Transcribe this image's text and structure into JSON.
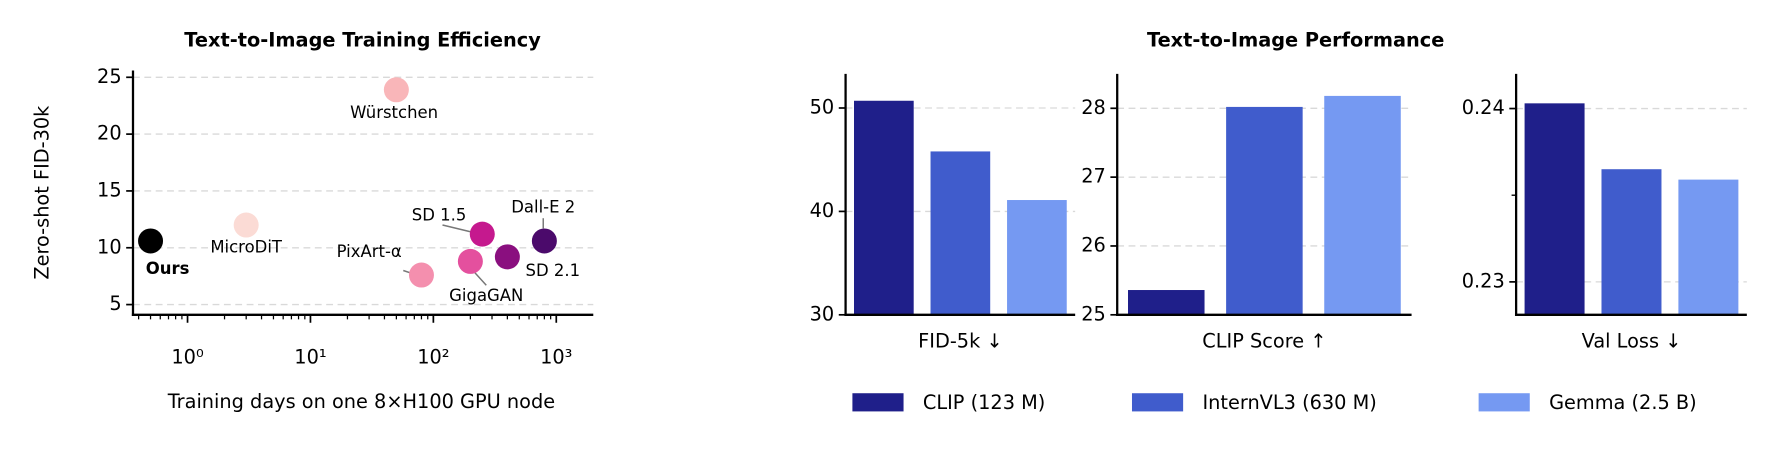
{
  "chart_data": [
    {
      "type": "scatter",
      "title": "Text-to-Image Training Efficiency",
      "x_label": "Training days on one 8×H100 GPU node",
      "y_label": "Zero-shot FID-30k",
      "labels": [
        "Ours",
        "MicroDiT",
        "Würstchen",
        "PixArt-α",
        "GigaGAN",
        "SD 1.5",
        "SD 2.1",
        "Dall-E 2"
      ],
      "x": [
        0.5,
        3,
        50,
        80,
        200,
        250,
        400,
        800
      ],
      "values": [
        10.6,
        12.0,
        23.9,
        7.6,
        8.8,
        11.2,
        9.2,
        10.6
      ],
      "colors": [
        "#000000",
        "#fbdbd5",
        "#f9b6b9",
        "#f48fae",
        "#e4509e",
        "#c5198e",
        "#8a0f7f",
        "#4b0a6b"
      ],
      "xscale": "log",
      "xlim": [
        0.36,
        2000
      ],
      "ylim": [
        4.1,
        25.6
      ],
      "xticks": [
        {
          "value": 1,
          "label": "10⁰"
        },
        {
          "value": 10,
          "label": "10¹"
        },
        {
          "value": 100,
          "label": "10²"
        },
        {
          "value": 1000,
          "label": "10³"
        }
      ],
      "xminorticks": [
        0.4,
        0.5,
        0.6,
        0.7,
        0.8,
        0.9,
        2,
        3,
        4,
        5,
        6,
        7,
        8,
        9,
        20,
        30,
        40,
        50,
        60,
        70,
        80,
        90,
        200,
        300,
        400,
        500,
        600,
        700,
        800,
        900
      ],
      "yticks": [
        5,
        10,
        15,
        20,
        25
      ],
      "grid": true
    },
    {
      "type": "bar",
      "x_label": "FID-5k  ↓",
      "legend": "bottom",
      "series": [
        {
          "name": "CLIP (123 M)",
          "color": "#1f1f8a",
          "values": [
            50.7
          ]
        },
        {
          "name": "InternVL3 (630 M)",
          "color": "#405ccc",
          "values": [
            45.8
          ]
        },
        {
          "name": "Gemma (2.5 B)",
          "color": "#7599f2",
          "values": [
            41.1
          ]
        }
      ],
      "ylim": [
        30,
        53.3
      ],
      "yticks": [
        30,
        40,
        50
      ],
      "grid": true
    },
    {
      "type": "bar",
      "title": "Text-to-Image Performance",
      "x_label": "CLIP Score  ↑",
      "series": [
        {
          "color": "#1f1f8a",
          "values": [
            25.36
          ]
        },
        {
          "color": "#405ccc",
          "values": [
            28.02
          ]
        },
        {
          "color": "#7599f2",
          "values": [
            28.18
          ]
        }
      ],
      "ylim": [
        25,
        28.5
      ],
      "yticks": [
        25,
        26,
        27,
        28
      ],
      "grid": true
    },
    {
      "type": "bar",
      "x_label": "Val Loss  ↓",
      "series": [
        {
          "color": "#1f1f8a",
          "values": [
            0.2403
          ]
        },
        {
          "color": "#405ccc",
          "values": [
            0.2365
          ]
        },
        {
          "color": "#7599f2",
          "values": [
            0.2359
          ]
        }
      ],
      "ylim": [
        0.2281,
        0.242
      ],
      "yticks": [
        0.23,
        0.24
      ],
      "yminorticks": [
        0.235
      ],
      "grid": true
    }
  ]
}
